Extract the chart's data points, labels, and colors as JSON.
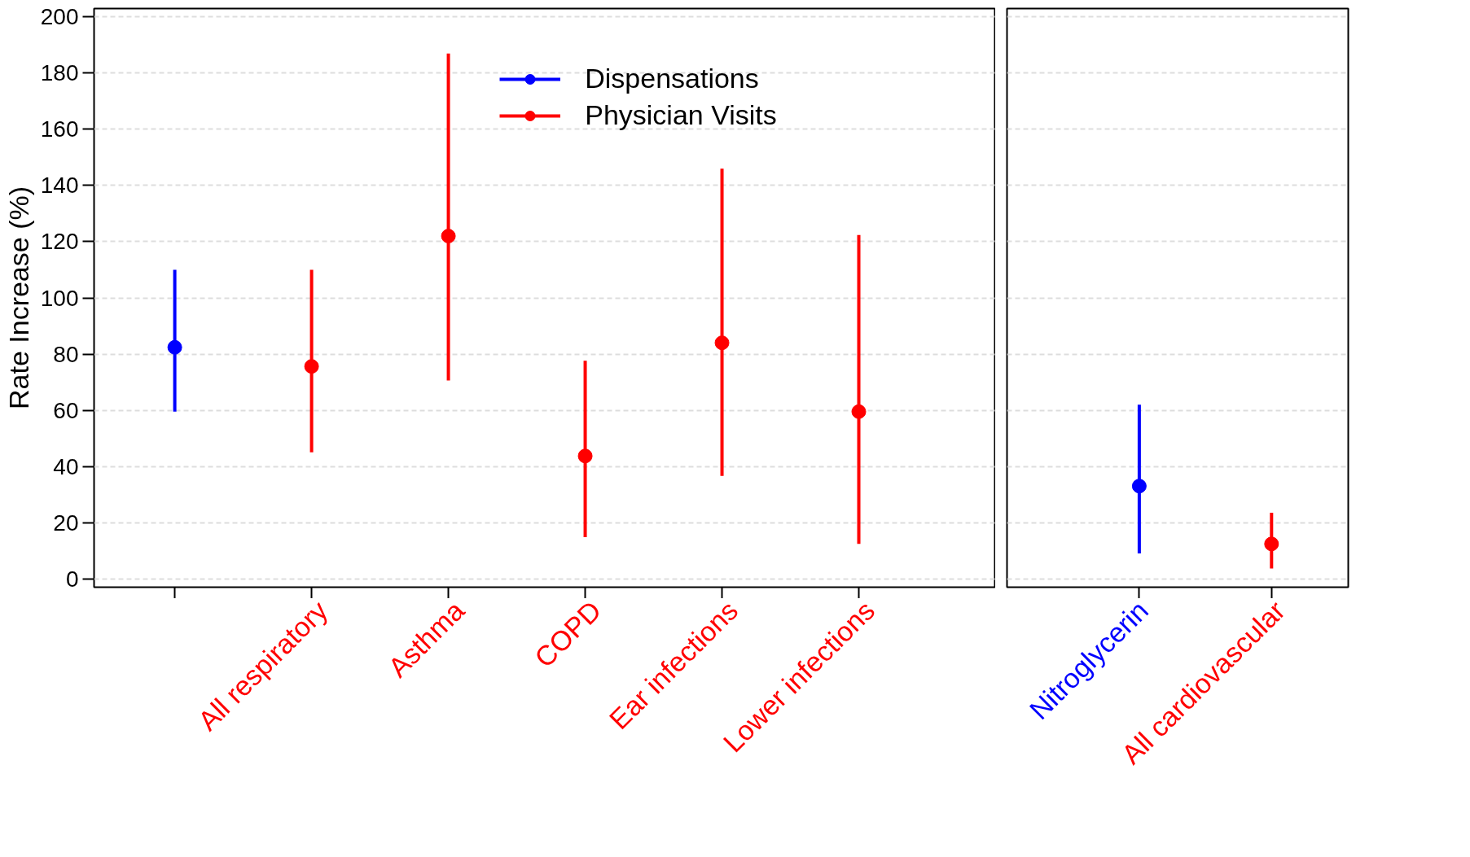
{
  "chart_data": [
    {
      "type": "scatter",
      "ylabel": "Rate Increase (%)",
      "categories": [
        null,
        "All respiratory",
        "Asthma",
        "COPD",
        "Ear infections",
        "Lower infections"
      ],
      "ylim": [
        -3,
        203
      ],
      "yticks": [
        0,
        20,
        40,
        60,
        80,
        100,
        120,
        140,
        160,
        180,
        200
      ],
      "grid": "y",
      "legend": "top",
      "marker": "circle",
      "series": [
        {
          "name": "Dispensations",
          "color": "#0000ff",
          "values": [
            82.4,
            null,
            null,
            null,
            null,
            null
          ],
          "errors": [
            [
              59.5,
              110
            ],
            null,
            null,
            null,
            null,
            null
          ]
        },
        {
          "name": "Physician Visits",
          "color": "#ff0000",
          "values": [
            null,
            75.6,
            122,
            43.7,
            84,
            59.5
          ],
          "errors": [
            null,
            [
              45,
              110
            ],
            [
              70.6,
              187
            ],
            [
              14.8,
              77.6
            ],
            [
              36.6,
              146
            ],
            [
              12.4,
              122.4
            ]
          ]
        }
      ]
    },
    {
      "type": "scatter",
      "categories": [
        "Nitroglycerin",
        "All cardiovascular"
      ],
      "ylim": [
        -3,
        203
      ],
      "yticks": [
        0,
        20,
        40,
        60,
        80,
        100,
        120,
        140,
        160,
        180,
        200
      ],
      "grid": "y",
      "tick_labels": "x",
      "marker": "circle",
      "series": [
        {
          "color": "#0000ff",
          "values": [
            33,
            null
          ],
          "errors": [
            [
              9,
              62
            ],
            null
          ]
        },
        {
          "color": "#ff0000",
          "values": [
            null,
            12.4
          ],
          "errors": [
            null,
            [
              3.7,
              23.5
            ]
          ]
        }
      ]
    }
  ]
}
